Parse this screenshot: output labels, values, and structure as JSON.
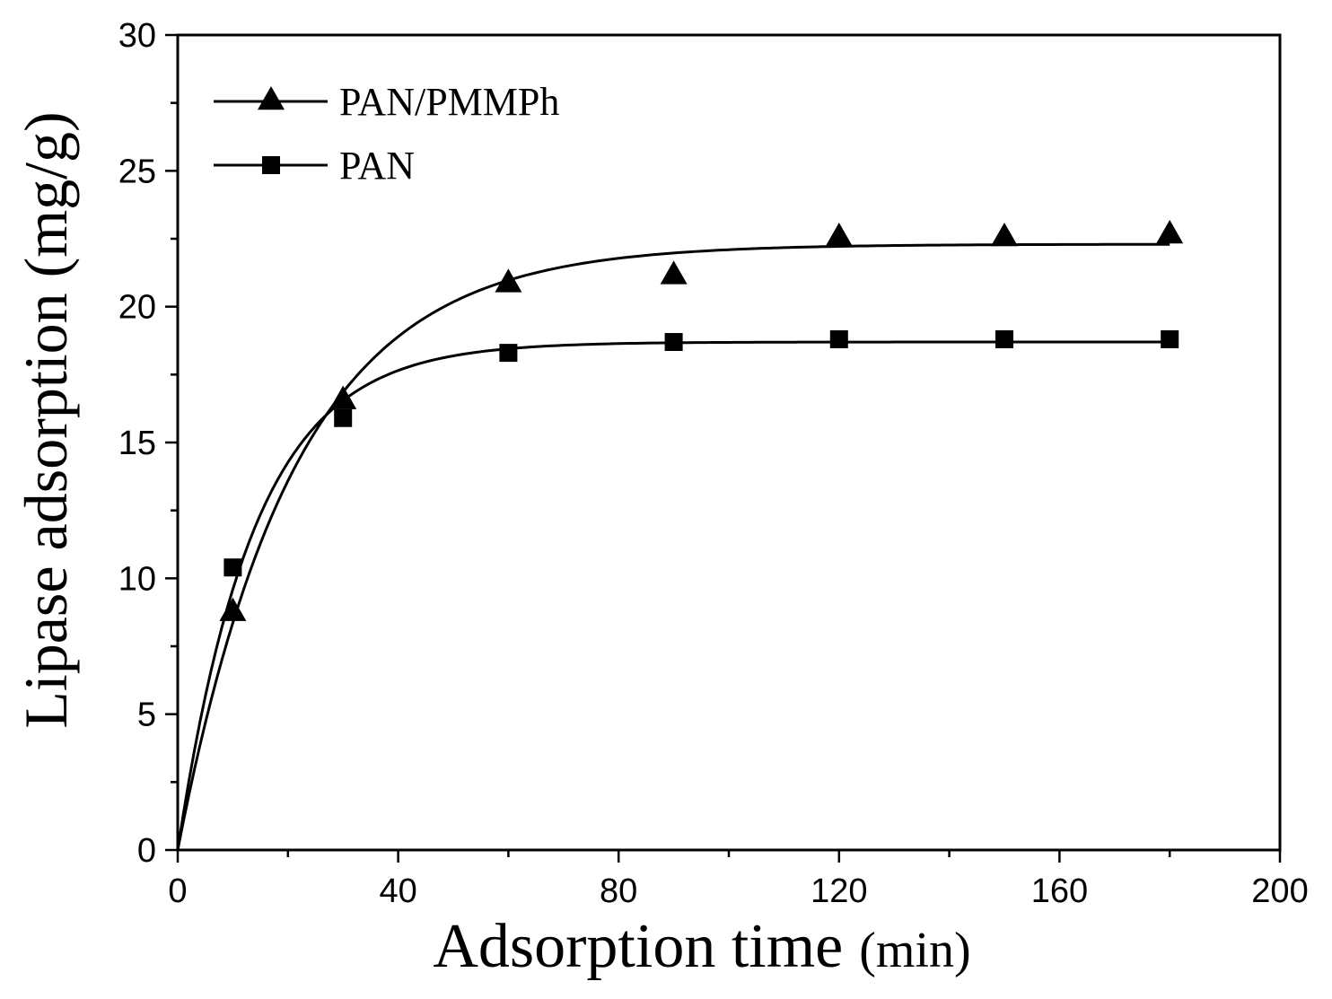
{
  "chart_data": {
    "type": "scatter",
    "title": "",
    "xlabel": "Adsorption time",
    "xlabel_unit": "(min)",
    "ylabel": "Lipase adsorption (mg/g)",
    "xlim": [
      0,
      200
    ],
    "ylim": [
      0,
      30
    ],
    "xticks": [
      0,
      40,
      80,
      120,
      160,
      200
    ],
    "yticks": [
      0,
      5,
      10,
      15,
      20,
      25,
      30
    ],
    "x_minor_step": 20,
    "y_minor_step": 2.5,
    "grid": false,
    "legend_position": "top-left",
    "series": [
      {
        "name": "PAN/PMMPh",
        "marker": "triangle",
        "x": [
          10,
          30,
          60,
          90,
          120,
          150,
          180
        ],
        "y": [
          8.8,
          16.6,
          20.9,
          21.2,
          22.6,
          22.6,
          22.7
        ],
        "fit": {
          "model": "first-order",
          "qe": 22.3,
          "k": 0.047,
          "x_end": 180
        }
      },
      {
        "name": "PAN",
        "marker": "square",
        "x": [
          10,
          30,
          60,
          90,
          120,
          150,
          180
        ],
        "y": [
          10.4,
          15.9,
          18.3,
          18.7,
          18.8,
          18.8,
          18.8
        ],
        "fit": {
          "model": "first-order",
          "qe": 18.7,
          "k": 0.072,
          "x_end": 180
        }
      }
    ]
  }
}
